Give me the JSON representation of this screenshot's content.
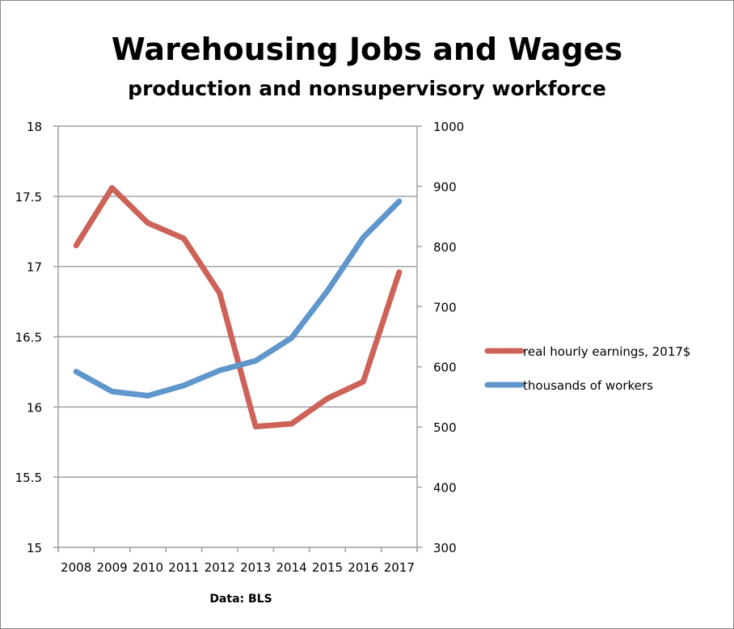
{
  "chart_data": {
    "type": "line",
    "title": "Warehousing Jobs and Wages",
    "subtitle": "production and nonsupervisory workforce",
    "xlabel": "Data: BLS",
    "categories": [
      "2008",
      "2009",
      "2010",
      "2011",
      "2012",
      "2013",
      "2014",
      "2015",
      "2016",
      "2017"
    ],
    "y_left": {
      "ylim": [
        15,
        18
      ],
      "ticks": [
        "15",
        "15.5",
        "16",
        "16.5",
        "17",
        "17.5",
        "18"
      ],
      "tick_values": [
        15,
        15.5,
        16,
        16.5,
        17,
        17.5,
        18
      ]
    },
    "y_right": {
      "ylim": [
        300,
        1000
      ],
      "ticks": [
        "300",
        "400",
        "500",
        "600",
        "700",
        "800",
        "900",
        "1000"
      ],
      "tick_values": [
        300,
        400,
        500,
        600,
        700,
        800,
        900,
        1000
      ]
    },
    "grid": true,
    "legend_position": "right",
    "series": [
      {
        "name": "real hourly earnings, 2017$",
        "axis": "left",
        "color": "#cc6258",
        "values": [
          17.15,
          17.56,
          17.31,
          17.2,
          16.81,
          15.86,
          15.88,
          16.06,
          16.18,
          16.96
        ]
      },
      {
        "name": "thousands of workers",
        "axis": "right",
        "color": "#5f96cb",
        "values": [
          592,
          559,
          552,
          569,
          594,
          610,
          648,
          726,
          815,
          875
        ]
      }
    ]
  }
}
